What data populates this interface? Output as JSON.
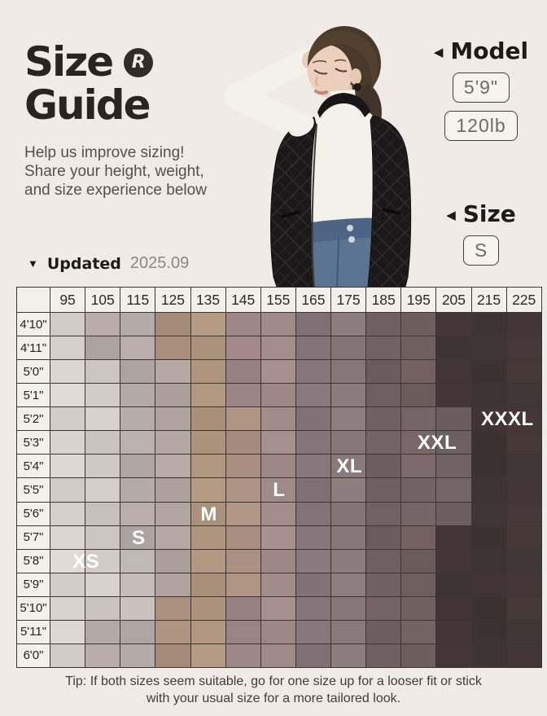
{
  "header": {
    "title_line1": "Size",
    "title_line2": "Guide",
    "logo_letter": "R",
    "subtitle_lines": [
      "Help us improve sizing!",
      "Share your height, weight,",
      "and size experience below"
    ]
  },
  "model_info": {
    "arrow": "◀",
    "model_label": "Model",
    "height_value": "5'9\"",
    "weight_value": "120lb",
    "size_label": "Size",
    "size_value": "S"
  },
  "updated": {
    "marker": "▼",
    "label": "Updated",
    "date": "2025.09"
  },
  "chart_data": {
    "type": "heatmap",
    "title": "Size Guide",
    "columns_weight_lb": [
      "95",
      "105",
      "115",
      "125",
      "135",
      "145",
      "155",
      "165",
      "175",
      "185",
      "195",
      "205",
      "215",
      "225"
    ],
    "rows_height": [
      "4'10\"",
      "4'11\"",
      "5'0\"",
      "5'1\"",
      "5'2\"",
      "5'3\"",
      "5'4\"",
      "5'5\"",
      "5'6\"",
      "5'7\"",
      "5'8\"",
      "5'9\"",
      "5'10\"",
      "5'11\"",
      "6'0\""
    ],
    "column_colors": [
      "#d9d2ce",
      "#b3a9a7",
      "#b4aaa8",
      "#a98e7d",
      "#ae957f",
      "#9d8487",
      "#a28b8b",
      "#85757b",
      "#887a7c",
      "#6f5f61",
      "#705f5f",
      "#413536",
      "#3e3334",
      "#433837"
    ],
    "cell_overrides": [
      {
        "r0": 2,
        "r1": 12,
        "c": 1,
        "color": "#cfc8c4"
      },
      {
        "r0": 10,
        "r1": 12,
        "c": 2,
        "color": "#c3bab6"
      },
      {
        "r0": 2,
        "r1": 11,
        "c": 3,
        "color": "#b1a5a1"
      },
      {
        "r0": 4,
        "r1": 11,
        "c": 5,
        "color": "#ab9181"
      },
      {
        "r0": 4,
        "r1": 8,
        "c": 10,
        "color": "#766567"
      },
      {
        "r0": 4,
        "r1": 8,
        "c": 11,
        "color": "#6e6162"
      }
    ],
    "size_labels": [
      {
        "text": "XS",
        "row": 10,
        "col": 0,
        "span": 2
      },
      {
        "text": "S",
        "row": 9,
        "col": 2,
        "span": 1
      },
      {
        "text": "M",
        "row": 8,
        "col": 4,
        "span": 1
      },
      {
        "text": "L",
        "row": 7,
        "col": 6,
        "span": 1
      },
      {
        "text": "XL",
        "row": 6,
        "col": 8,
        "span": 1
      },
      {
        "text": "XXL",
        "row": 5,
        "col": 10,
        "span": 2
      },
      {
        "text": "XXXL",
        "row": 4,
        "col": 12,
        "span": 2
      }
    ],
    "label_color": "#ffffff",
    "grid_line_color": "#3c3632",
    "header_bg": "#f3efeb"
  },
  "tip": {
    "line1": "Tip: If both sizes seem suitable, go for one size up for a looser fit or stick",
    "line2": "with your usual size for a more tailored look."
  }
}
